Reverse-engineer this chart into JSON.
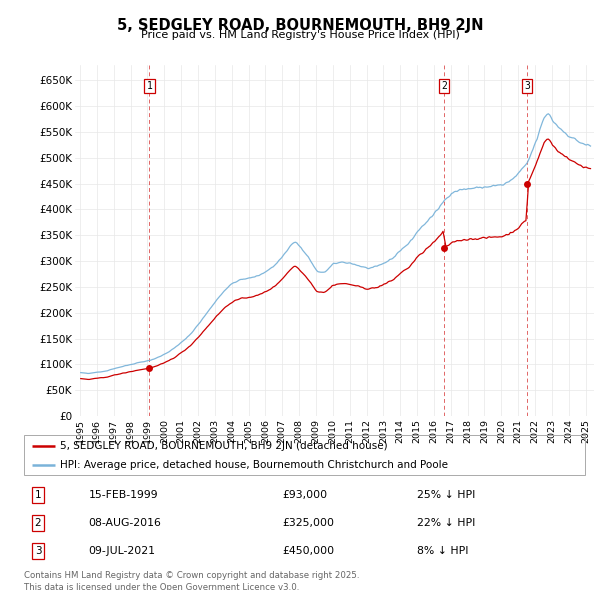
{
  "title": "5, SEDGLEY ROAD, BOURNEMOUTH, BH9 2JN",
  "subtitle": "Price paid vs. HM Land Registry's House Price Index (HPI)",
  "ylim": [
    0,
    680000
  ],
  "yticks": [
    0,
    50000,
    100000,
    150000,
    200000,
    250000,
    300000,
    350000,
    400000,
    450000,
    500000,
    550000,
    600000,
    650000
  ],
  "ytick_labels": [
    "£0",
    "£50K",
    "£100K",
    "£150K",
    "£200K",
    "£250K",
    "£300K",
    "£350K",
    "£400K",
    "£450K",
    "£500K",
    "£550K",
    "£600K",
    "£650K"
  ],
  "grid_color": "#e8e8e8",
  "hpi_color": "#7ab3d9",
  "price_color": "#cc0000",
  "marker_color": "#cc0000",
  "sale_dates": [
    1999.12,
    2016.6,
    2021.52
  ],
  "sale_prices": [
    93000,
    325000,
    450000
  ],
  "sale_labels": [
    "1",
    "2",
    "3"
  ],
  "sale_info": [
    {
      "label": "1",
      "date": "15-FEB-1999",
      "price": "£93,000",
      "pct": "25% ↓ HPI"
    },
    {
      "label": "2",
      "date": "08-AUG-2016",
      "price": "£325,000",
      "pct": "22% ↓ HPI"
    },
    {
      "label": "3",
      "date": "09-JUL-2021",
      "price": "£450,000",
      "pct": "8% ↓ HPI"
    }
  ],
  "legend_entries": [
    "5, SEDGLEY ROAD, BOURNEMOUTH, BH9 2JN (detached house)",
    "HPI: Average price, detached house, Bournemouth Christchurch and Poole"
  ],
  "footer": "Contains HM Land Registry data © Crown copyright and database right 2025.\nThis data is licensed under the Open Government Licence v3.0.",
  "xlim": [
    1994.7,
    2025.5
  ],
  "xticks": [
    1995,
    1996,
    1997,
    1998,
    1999,
    2000,
    2001,
    2002,
    2003,
    2004,
    2005,
    2006,
    2007,
    2008,
    2009,
    2010,
    2011,
    2012,
    2013,
    2014,
    2015,
    2016,
    2017,
    2018,
    2019,
    2020,
    2021,
    2022,
    2023,
    2024,
    2025
  ]
}
